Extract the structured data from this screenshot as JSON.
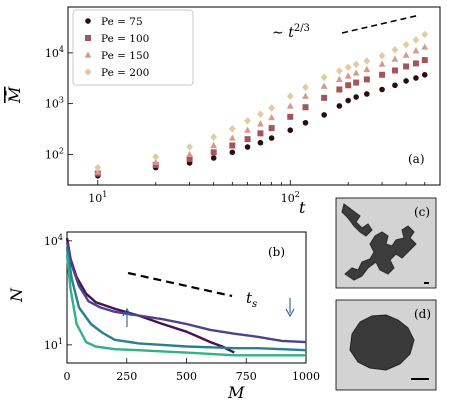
{
  "chart_data": [
    {
      "panel": "(a)",
      "type": "scatter",
      "xlabel": "t",
      "ylabel": "M̄",
      "xscale": "log",
      "yscale": "log",
      "xlim": [
        7,
        600
      ],
      "ylim": [
        25,
        80000
      ],
      "x_ticks": [
        "10^1",
        "10^2"
      ],
      "y_ticks": [
        "10^2",
        "10^3",
        "10^4"
      ],
      "legend_position": "top-left",
      "annotation": "∼ t^{2/3}",
      "series": [
        {
          "name": "Pe = 75",
          "marker": "circle",
          "color": "#2a0d10",
          "points": [
            [
              10,
              38
            ],
            [
              20,
              55
            ],
            [
              30,
              68
            ],
            [
              40,
              85
            ],
            [
              50,
              110
            ],
            [
              60,
              140
            ],
            [
              70,
              170
            ],
            [
              80,
              210
            ],
            [
              100,
              300
            ],
            [
              120,
              420
            ],
            [
              150,
              600
            ],
            [
              180,
              900
            ],
            [
              200,
              1150
            ],
            [
              220,
              1350
            ],
            [
              250,
              1550
            ],
            [
              300,
              1900
            ],
            [
              350,
              2300
            ],
            [
              400,
              2800
            ],
            [
              450,
              3200
            ],
            [
              500,
              3700
            ]
          ]
        },
        {
          "name": "Pe = 100",
          "marker": "square",
          "color": "#a2555a",
          "points": [
            [
              10,
              42
            ],
            [
              20,
              62
            ],
            [
              30,
              82
            ],
            [
              40,
              110
            ],
            [
              50,
              150
            ],
            [
              60,
              200
            ],
            [
              70,
              260
            ],
            [
              80,
              330
            ],
            [
              100,
              550
            ],
            [
              120,
              850
            ],
            [
              150,
              1300
            ],
            [
              180,
              1900
            ],
            [
              200,
              2300
            ],
            [
              220,
              2600
            ],
            [
              250,
              3000
            ],
            [
              300,
              3700
            ],
            [
              350,
              4500
            ],
            [
              400,
              5400
            ],
            [
              450,
              6200
            ],
            [
              500,
              7200
            ]
          ]
        },
        {
          "name": "Pe = 150",
          "marker": "triangle",
          "color": "#d59a8a",
          "points": [
            [
              10,
              45
            ],
            [
              20,
              70
            ],
            [
              30,
              100
            ],
            [
              40,
              150
            ],
            [
              50,
              210
            ],
            [
              60,
              300
            ],
            [
              70,
              400
            ],
            [
              80,
              530
            ],
            [
              100,
              900
            ],
            [
              120,
              1400
            ],
            [
              150,
              2200
            ],
            [
              180,
              3000
            ],
            [
              200,
              3500
            ],
            [
              220,
              4000
            ],
            [
              250,
              4700
            ],
            [
              300,
              6000
            ],
            [
              350,
              7500
            ],
            [
              400,
              9000
            ],
            [
              450,
              11000
            ],
            [
              500,
              13000
            ]
          ]
        },
        {
          "name": "Pe = 200",
          "marker": "diamond",
          "color": "#e1cca2",
          "points": [
            [
              10,
              55
            ],
            [
              20,
              90
            ],
            [
              30,
              140
            ],
            [
              40,
              220
            ],
            [
              50,
              320
            ],
            [
              60,
              460
            ],
            [
              70,
              620
            ],
            [
              80,
              820
            ],
            [
              100,
              1400
            ],
            [
              120,
              2100
            ],
            [
              150,
              3300
            ],
            [
              180,
              4400
            ],
            [
              200,
              5200
            ],
            [
              220,
              5900
            ],
            [
              250,
              6900
            ],
            [
              300,
              8800
            ],
            [
              350,
              11500
            ],
            [
              400,
              14500
            ],
            [
              450,
              18000
            ],
            [
              500,
              23000
            ]
          ]
        }
      ]
    },
    {
      "panel": "(b)",
      "type": "line",
      "xlabel": "M",
      "ylabel": "N",
      "yscale": "log",
      "xlim": [
        0,
        1000
      ],
      "ylim": [
        3,
        18000
      ],
      "x_ticks": [
        0,
        250,
        500,
        750,
        1000
      ],
      "y_ticks": [
        "10^1",
        "10^4"
      ],
      "annotation": "t_s",
      "series": [
        {
          "color": "#4a1150",
          "points": [
            [
              0,
              12000
            ],
            [
              15,
              3000
            ],
            [
              40,
              900
            ],
            [
              80,
              300
            ],
            [
              120,
              170
            ],
            [
              200,
              110
            ],
            [
              300,
              70
            ],
            [
              400,
              40
            ],
            [
              500,
              24
            ],
            [
              550,
              17
            ],
            [
              600,
              12
            ],
            [
              650,
              9
            ],
            [
              680,
              7
            ],
            [
              700,
              6
            ]
          ]
        },
        {
          "color": "#4a4490",
          "points": [
            [
              0,
              9000
            ],
            [
              20,
              2000
            ],
            [
              50,
              500
            ],
            [
              90,
              180
            ],
            [
              140,
              120
            ],
            [
              200,
              90
            ],
            [
              300,
              70
            ],
            [
              400,
              55
            ],
            [
              500,
              40
            ],
            [
              600,
              27
            ],
            [
              700,
              21
            ],
            [
              800,
              17
            ],
            [
              900,
              13
            ],
            [
              1000,
              12
            ]
          ]
        },
        {
          "color": "#2a7e8e",
          "points": [
            [
              0,
              6000
            ],
            [
              20,
              800
            ],
            [
              50,
              120
            ],
            [
              100,
              40
            ],
            [
              150,
              22
            ],
            [
              200,
              14
            ],
            [
              300,
              11
            ],
            [
              400,
              10
            ],
            [
              500,
              9
            ],
            [
              600,
              8.5
            ],
            [
              700,
              8
            ],
            [
              800,
              8
            ],
            [
              900,
              7.5
            ],
            [
              1000,
              7
            ]
          ]
        },
        {
          "color": "#32b08a",
          "points": [
            [
              0,
              4000
            ],
            [
              15,
              400
            ],
            [
              40,
              40
            ],
            [
              80,
              12
            ],
            [
              120,
              9
            ],
            [
              200,
              7.5
            ],
            [
              300,
              7
            ],
            [
              400,
              6.5
            ],
            [
              500,
              6
            ],
            [
              600,
              5.5
            ],
            [
              700,
              5
            ],
            [
              800,
              5
            ],
            [
              900,
              5
            ],
            [
              1000,
              5
            ]
          ]
        }
      ]
    }
  ],
  "snapshots": [
    {
      "label": "(c)"
    },
    {
      "label": "(d)"
    }
  ]
}
